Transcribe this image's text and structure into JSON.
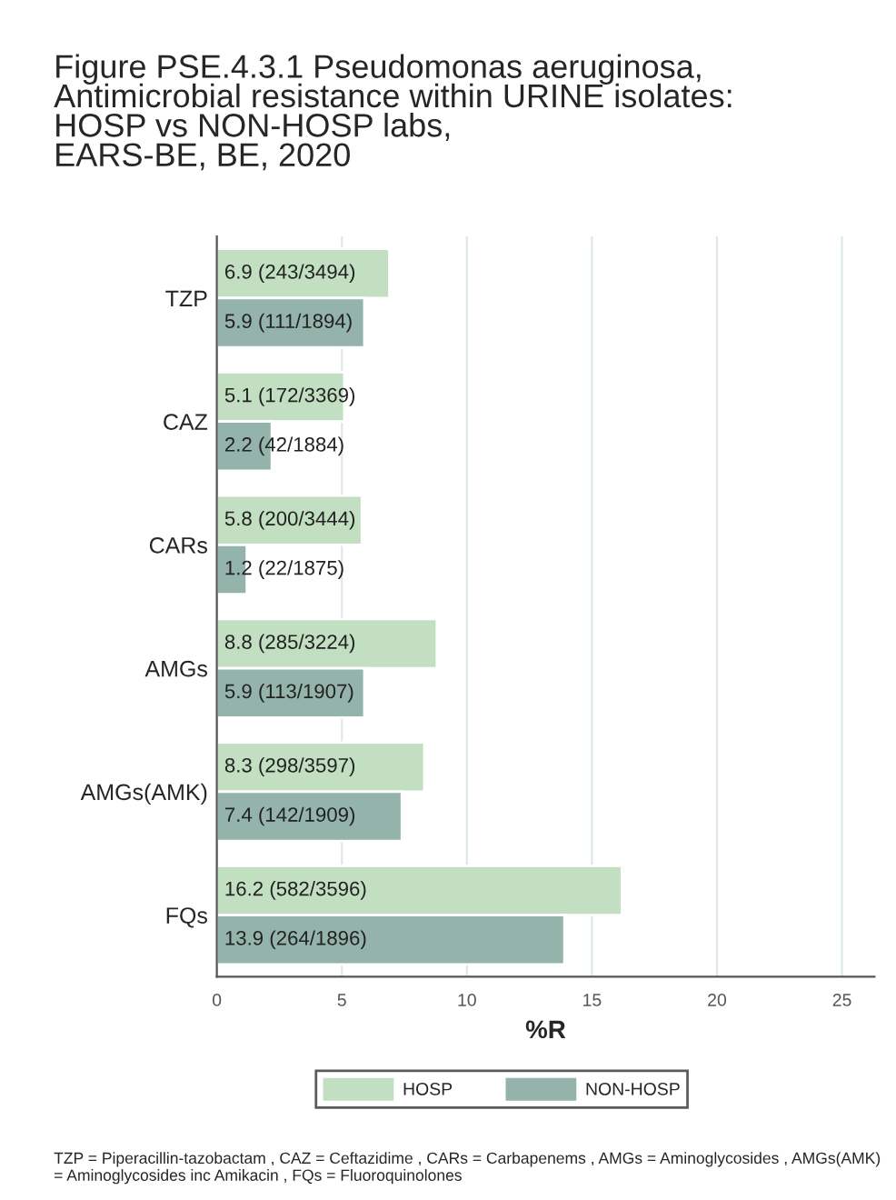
{
  "chart_data": {
    "type": "bar",
    "orientation": "horizontal",
    "title": "Figure PSE.4.3.1 Pseudomonas aeruginosa,\nAntimicrobial resistance within URINE isolates:\nHOSP vs NON-HOSP labs,\nEARS-BE, BE, 2020",
    "xlabel": "%R",
    "categories": [
      "TZP",
      "CAZ",
      "CARs",
      "AMGs",
      "AMGs(AMK)",
      "FQs"
    ],
    "series": [
      {
        "name": "HOSP",
        "color": "#c2dfc2",
        "values": [
          6.9,
          5.1,
          5.8,
          8.8,
          8.3,
          16.2
        ],
        "value_labels": [
          "6.9 (243/3494)",
          "5.1 (172/3369)",
          "5.8 (200/3444)",
          "8.8 (285/3224)",
          "8.3 (298/3597)",
          "16.2 (582/3596)"
        ]
      },
      {
        "name": "NON-HOSP",
        "color": "#93b3ab",
        "values": [
          5.9,
          2.2,
          1.2,
          5.9,
          7.4,
          13.9
        ],
        "value_labels": [
          "5.9 (111/1894)",
          "2.2 (42/1884)",
          "1.2 (22/1875)",
          "5.9 (113/1907)",
          "7.4 (142/1909)",
          "13.9 (264/1896)"
        ]
      }
    ],
    "xlim": [
      0,
      26.3
    ],
    "xticks": [
      0,
      5,
      10,
      15,
      20,
      25
    ],
    "grid": "x",
    "legend": "bottom",
    "annotations": [
      "TZP = Piperacillin-tazobactam , CAZ = Ceftazidime , CARs = Carbapenems , AMGs = Aminoglycosides , AMGs(AMK) = Aminoglycosides inc Amikacin , FQs = Fluoroquinolones"
    ]
  }
}
